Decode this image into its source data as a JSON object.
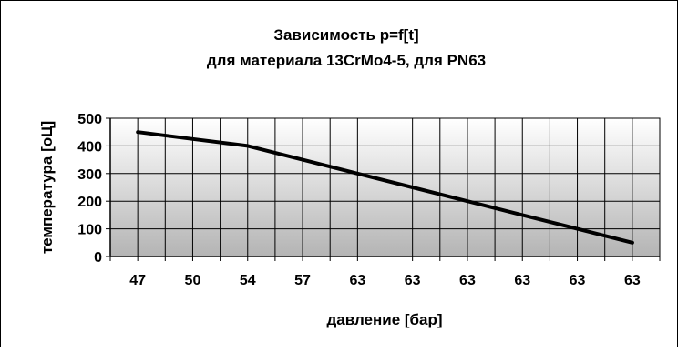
{
  "chart_data": {
    "type": "line",
    "title": "Зависимость p=f[t]",
    "subtitle": "для материала 13CrMo4-5, для PN63",
    "xlabel": "давление [бар]",
    "ylabel": "температура [оЦ]",
    "categories": [
      "47",
      "50",
      "54",
      "57",
      "63",
      "63",
      "63",
      "63",
      "63",
      "63"
    ],
    "series": [
      {
        "values": [
          450,
          425,
          400,
          350,
          300,
          250,
          200,
          150,
          100,
          50
        ]
      }
    ],
    "ylim": [
      0,
      500
    ],
    "yticks": [
      "0",
      "100",
      "200",
      "300",
      "400",
      "500"
    ],
    "grid": true,
    "legend": "none",
    "colors": {
      "line": "#000000",
      "plot_top": "#ffffff",
      "plot_bottom": "#b4b4b4",
      "grid": "#000000"
    }
  }
}
